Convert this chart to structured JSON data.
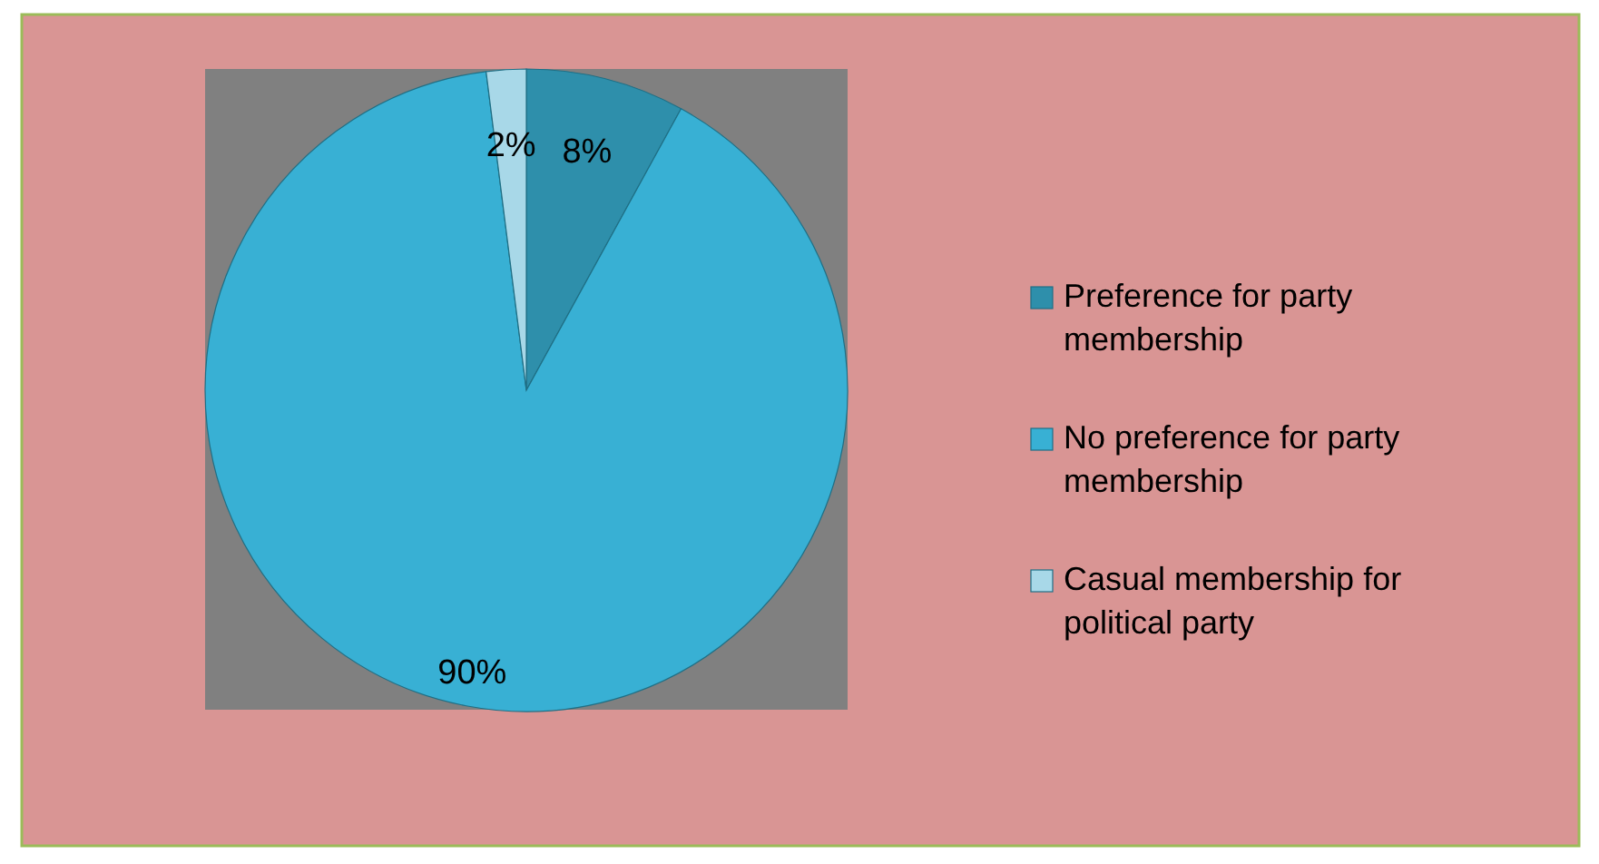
{
  "chart_data": {
    "type": "pie",
    "categories": [
      "Preference for party membership",
      "No preference for party membership",
      "Casual membership for political party"
    ],
    "values": [
      8,
      90,
      2
    ],
    "colors": [
      "#2e8fab",
      "#38b0d4",
      "#a8d8e8"
    ],
    "value_labels": [
      "8%",
      "90%",
      "2%"
    ],
    "legend": "right"
  }
}
